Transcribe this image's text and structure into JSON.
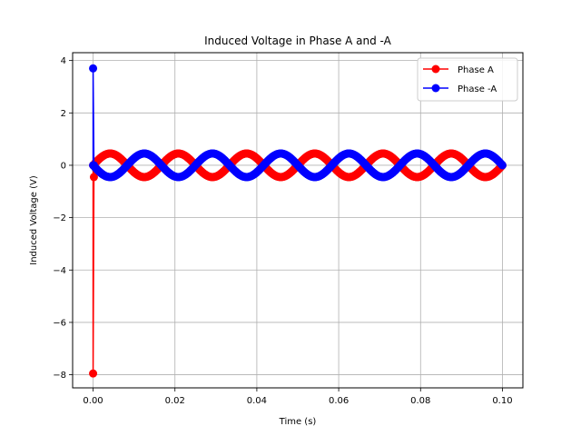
{
  "chart_data": {
    "type": "line",
    "title": "Induced Voltage in Phase A and -A",
    "xlabel": "Time (s)",
    "ylabel": "Induced Voltage (V)",
    "xlim": [
      -0.005,
      0.105
    ],
    "ylim": [
      -8.5,
      4.3
    ],
    "xticks": [
      0.0,
      0.02,
      0.04,
      0.06,
      0.08,
      0.1
    ],
    "xtick_labels": [
      "0.00",
      "0.02",
      "0.04",
      "0.06",
      "0.08",
      "0.10"
    ],
    "yticks": [
      -8,
      -6,
      -4,
      -2,
      0,
      2,
      4
    ],
    "ytick_labels": [
      "−8",
      "−6",
      "−4",
      "−2",
      "0",
      "2",
      "4"
    ],
    "grid": true,
    "legend_position": "top-right",
    "series": [
      {
        "name": "Phase A",
        "color": "#ff0000",
        "marker": "circle",
        "initial_points": [
          [
            0.0,
            0.0
          ],
          [
            0.0,
            -7.95
          ],
          [
            0.0002,
            -0.45
          ]
        ],
        "waveform": {
          "amplitude": 0.45,
          "frequency_hz": 60,
          "phase_deg": 0,
          "t_start": 0.0002,
          "t_end": 0.1
        }
      },
      {
        "name": "Phase -A",
        "color": "#0000ff",
        "marker": "circle",
        "initial_points": [
          [
            0.0,
            0.0
          ],
          [
            0.0,
            3.7
          ],
          [
            0.0002,
            0.0
          ]
        ],
        "waveform": {
          "amplitude": 0.45,
          "frequency_hz": 60,
          "phase_deg": 180,
          "t_start": 0.0002,
          "t_end": 0.1
        }
      }
    ]
  }
}
